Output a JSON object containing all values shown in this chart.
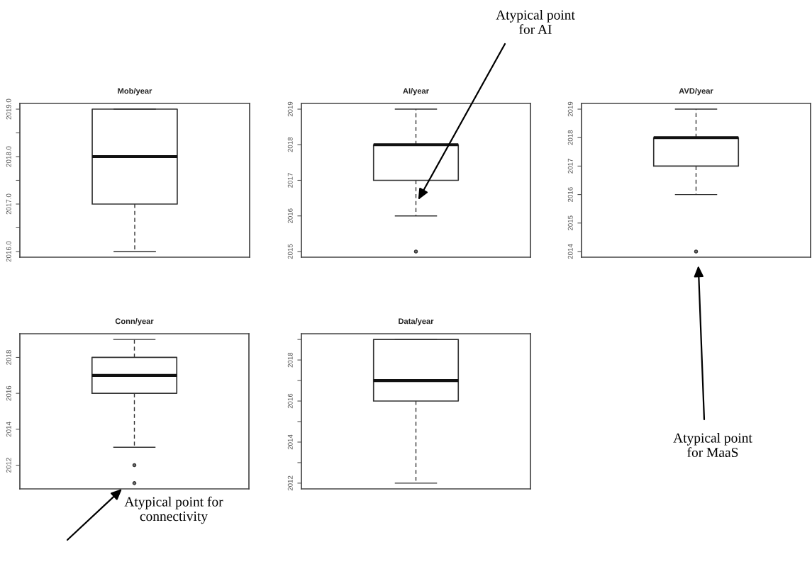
{
  "chart_data": [
    {
      "type": "box",
      "title": "Mob/year",
      "categories": [
        null
      ],
      "tick_labels": "y",
      "ylim": [
        2015.88,
        2019.12
      ],
      "yticks": [
        {
          "value": 2016,
          "label": "2016.0"
        },
        {
          "value": 2016.5,
          "label": null
        },
        {
          "value": 2017,
          "label": "2017.0"
        },
        {
          "value": 2017.5,
          "label": null
        },
        {
          "value": 2018,
          "label": "2018.0"
        },
        {
          "value": 2018.5,
          "label": null
        },
        {
          "value": 2019,
          "label": "2019.0"
        }
      ],
      "boxes": [
        {
          "low": 2016,
          "q1": 2017,
          "median": 2018,
          "q3": 2019,
          "high": 2019
        }
      ]
    },
    {
      "type": "box",
      "title": "AI/year",
      "categories": [
        null
      ],
      "tick_labels": "y",
      "ylim": [
        2014.84,
        2019.16
      ],
      "yticks": [
        2015,
        2016,
        2017,
        2018,
        2019
      ],
      "boxes": [
        {
          "low": 2016,
          "q1": 2017,
          "median": 2018,
          "q3": 2018,
          "high": 2019,
          "outliers": [
            2015
          ]
        }
      ],
      "annotations": [
        "Atypical point\nfor AI"
      ]
    },
    {
      "type": "box",
      "title": "AVD/year",
      "categories": [
        null
      ],
      "tick_labels": "y",
      "ylim": [
        2013.8,
        2019.2
      ],
      "yticks": [
        2014,
        2015,
        2016,
        2017,
        2018,
        2019
      ],
      "boxes": [
        {
          "low": 2016,
          "q1": 2017,
          "median": 2018,
          "q3": 2018,
          "high": 2019,
          "outliers": [
            2014
          ]
        }
      ],
      "annotations": [
        "Atypical point\nfor MaaS"
      ]
    },
    {
      "type": "box",
      "title": "Conn/year",
      "categories": [
        null
      ],
      "tick_labels": "y",
      "ylim": [
        2010.68,
        2019.32
      ],
      "yticks": [
        2012,
        2014,
        2016,
        2018
      ],
      "boxes": [
        {
          "low": 2013,
          "q1": 2016,
          "median": 2017,
          "q3": 2018,
          "high": 2019,
          "outliers": [
            2012,
            2011
          ]
        }
      ],
      "annotations": [
        "Atypical point for\nconnectivity"
      ]
    },
    {
      "type": "box",
      "title": "Data/year",
      "categories": [
        null
      ],
      "tick_labels": "y",
      "ylim": [
        2011.72,
        2019.28
      ],
      "yticks": [
        {
          "value": 2012,
          "label": "2012"
        },
        {
          "value": 2013,
          "label": null
        },
        {
          "value": 2014,
          "label": "2014"
        },
        {
          "value": 2015,
          "label": null
        },
        {
          "value": 2016,
          "label": "2016"
        },
        {
          "value": 2017,
          "label": null
        },
        {
          "value": 2018,
          "label": "2018"
        },
        {
          "value": 2019,
          "label": null
        }
      ],
      "boxes": [
        {
          "low": 2012,
          "q1": 2016,
          "median": 2017,
          "q3": 2019,
          "high": 2019
        }
      ]
    }
  ]
}
